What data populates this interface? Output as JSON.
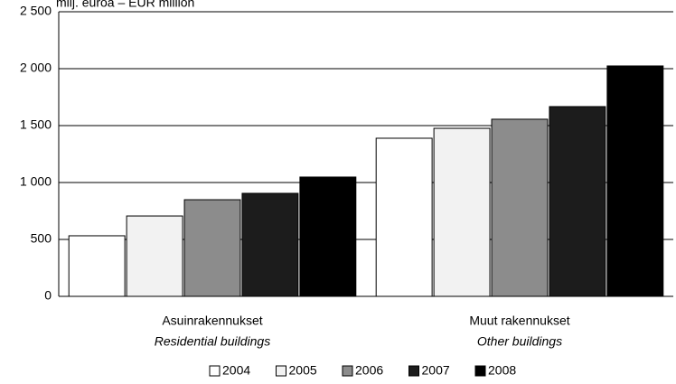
{
  "chart_data": {
    "type": "bar",
    "y_axis_label": "milj. euroa – EUR million",
    "categories": [
      "Asuinrakennukset",
      "Muut rakennukset"
    ],
    "categories_en": [
      "Residential buildings",
      "Other buildings"
    ],
    "series": [
      {
        "name": "2004",
        "color": "#ffffff",
        "values": [
          532,
          1389
        ]
      },
      {
        "name": "2005",
        "color": "#f2f2f2",
        "values": [
          706,
          1476
        ]
      },
      {
        "name": "2006",
        "color": "#8c8c8c",
        "values": [
          849,
          1556
        ]
      },
      {
        "name": "2007",
        "color": "#1c1c1c",
        "values": [
          905,
          1667
        ]
      },
      {
        "name": "2008",
        "color": "#000000",
        "values": [
          1048,
          2024
        ]
      }
    ],
    "ylim": [
      0,
      2500
    ],
    "yticks": [
      0,
      500,
      {
        "value": 1000,
        "label": "1 000"
      },
      {
        "value": 1500,
        "label": "1 500"
      },
      {
        "value": 2000,
        "label": "2 000"
      },
      {
        "value": 2500,
        "label": "2 500"
      }
    ],
    "grid": true,
    "legend": "bottom"
  }
}
